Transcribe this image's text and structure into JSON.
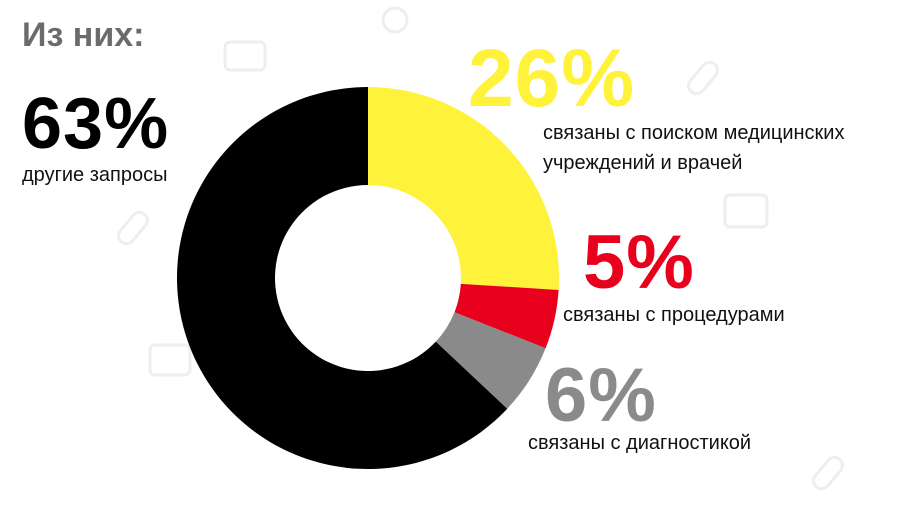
{
  "chart_data": {
    "type": "donut",
    "title": "Из них:",
    "categories": [
      "связаны с поиском медицинских учреждений и врачей",
      "связаны с процедурами",
      "связаны с диагностикой",
      "другие запросы"
    ],
    "values": [
      26,
      5,
      6,
      63
    ],
    "value_labels": [
      "26%",
      "5%",
      "6%",
      "63%"
    ],
    "colors": [
      "#fff23a",
      "#e8001c",
      "#8a8a8a",
      "#000000"
    ]
  }
}
